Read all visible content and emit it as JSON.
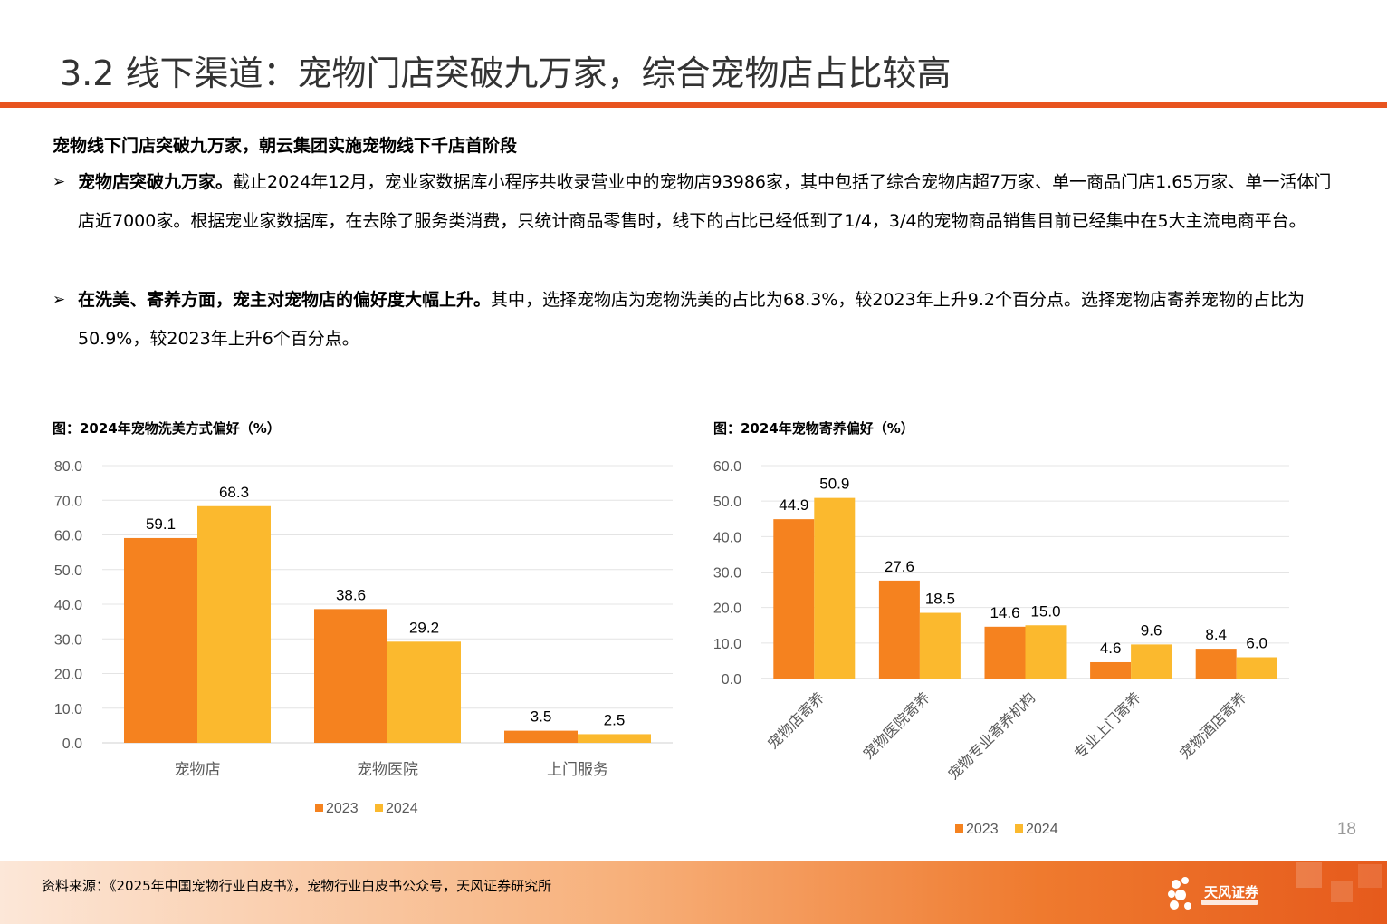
{
  "title": "3.2 线下渠道：宠物门店突破九万家，综合宠物店占比较高",
  "heading": "宠物线下门店突破九万家，朝云集团实施宠物线下千店首阶段",
  "bullets": [
    {
      "mark": "➢",
      "lead": "宠物店突破九万家。",
      "body": "截止2024年12月，宠业家数据库小程序共收录营业中的宠物店93986家，其中包括了综合宠物店超7万家、单一商品门店1.65万家、单一活体门店近7000家。根据宠业家数据库，在去除了服务类消费，只统计商品零售时，线下的占比已经低到了1/4，3/4的宠物商品销售目前已经集中在5大主流电商平台。"
    },
    {
      "mark": "➢",
      "lead": "在洗美、寄养方面，宠主对宠物店的偏好度大幅上升。",
      "body": "其中，选择宠物店为宠物洗美的占比为68.3%，较2023年上升9.2个百分点。选择宠物店寄养宠物的占比为50.9%，较2023年上升6个百分点。"
    }
  ],
  "figures": {
    "left_title": "图：2024年宠物洗美方式偏好（%）",
    "right_title": "图：2024年宠物寄养偏好（%）"
  },
  "chart_data": [
    {
      "type": "bar",
      "title": "图：2024年宠物洗美方式偏好（%）",
      "categories": [
        "宠物店",
        "宠物医院",
        "上门服务"
      ],
      "series": [
        {
          "name": "2023",
          "values": [
            59.1,
            38.6,
            3.5
          ],
          "color": "#f5821f"
        },
        {
          "name": "2024",
          "values": [
            68.3,
            29.2,
            2.5
          ],
          "color": "#fbb92e"
        }
      ],
      "ylim": [
        0,
        80
      ],
      "yticks": [
        "0.0",
        "10.0",
        "20.0",
        "30.0",
        "40.0",
        "50.0",
        "60.0",
        "70.0",
        "80.0"
      ],
      "grid": true,
      "legend": "bottom-center"
    },
    {
      "type": "bar",
      "title": "图：2024年宠物寄养偏好（%）",
      "categories": [
        "宠物店寄养",
        "宠物医院寄养",
        "宠物专业寄养机构",
        "专业上门寄养",
        "宠物酒店寄养"
      ],
      "series": [
        {
          "name": "2023",
          "values": [
            44.9,
            27.6,
            14.6,
            4.6,
            8.4
          ],
          "color": "#f5821f"
        },
        {
          "name": "2024",
          "values": [
            50.9,
            18.5,
            15.0,
            9.6,
            6.0
          ],
          "color": "#fbb92e"
        }
      ],
      "ylim": [
        0,
        60
      ],
      "yticks": [
        "0.0",
        "10.0",
        "20.0",
        "30.0",
        "40.0",
        "50.0",
        "60.0"
      ],
      "grid": true,
      "legend": "bottom-center"
    }
  ],
  "page_number": "18",
  "footer": {
    "source": "资料来源：《2025年中国宠物行业白皮书》，宠物行业白皮书公众号，天风证券研究所",
    "logo_name": "天风证券"
  }
}
